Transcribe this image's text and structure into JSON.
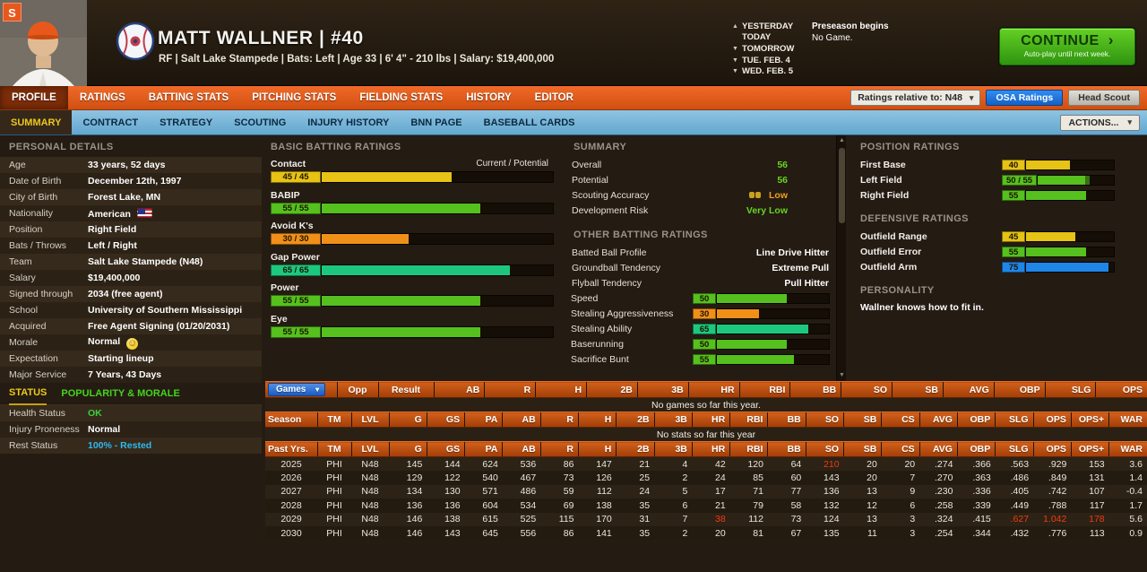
{
  "header": {
    "badge_letter": "S",
    "title": "MATT WALLNER  |  #40",
    "subtitle": "RF | Salt Lake Stampede  |  Bats: Left  |  Age 33  |  6' 4\" - 210 lbs  |  Salary: $19,400,000",
    "dates": [
      "YESTERDAY",
      "TODAY",
      "TOMORROW",
      "TUE. FEB. 4",
      "WED. FEB. 5"
    ],
    "preseason_line1": "Preseason begins",
    "preseason_line2": "No Game.",
    "continue_label": "CONTINUE",
    "continue_sub": "Auto-play until next week."
  },
  "main_nav": {
    "tabs": [
      "PROFILE",
      "RATINGS",
      "BATTING STATS",
      "PITCHING STATS",
      "FIELDING STATS",
      "HISTORY",
      "EDITOR"
    ],
    "active": "PROFILE",
    "ratings_relative_label": "Ratings relative to: N48",
    "osa_button": "OSA Ratings",
    "head_scout_button": "Head Scout"
  },
  "sub_nav": {
    "tabs": [
      "SUMMARY",
      "CONTRACT",
      "STRATEGY",
      "SCOUTING",
      "INJURY HISTORY",
      "BNN PAGE",
      "BASEBALL CARDS"
    ],
    "active": "SUMMARY",
    "actions_label": "ACTIONS..."
  },
  "personal_details": {
    "title": "PERSONAL DETAILS",
    "rows": [
      {
        "label": "Age",
        "value": "33 years, 52 days"
      },
      {
        "label": "Date of Birth",
        "value": "December 12th, 1997"
      },
      {
        "label": "City of Birth",
        "value": "Forest Lake, MN"
      },
      {
        "label": "Nationality",
        "value": "American",
        "icon": "us-flag"
      },
      {
        "label": "Position",
        "value": "Right Field"
      },
      {
        "label": "Bats / Throws",
        "value": "Left / Right"
      },
      {
        "label": "Team",
        "value": "Salt Lake Stampede (N48)"
      },
      {
        "label": "Salary",
        "value": "$19,400,000"
      },
      {
        "label": "Signed through",
        "value": "2034 (free agent)"
      },
      {
        "label": "School",
        "value": "University of Southern Mississippi"
      },
      {
        "label": "Acquired",
        "value": "Free Agent Signing (01/20/2031)"
      },
      {
        "label": "Morale",
        "value": "Normal",
        "icon": "morale-face"
      },
      {
        "label": "Expectation",
        "value": "Starting lineup"
      },
      {
        "label": "Major Service",
        "value": "7 Years, 43 Days"
      }
    ]
  },
  "status_panel": {
    "tabs": [
      "STATUS",
      "POPULARITY & MORALE"
    ],
    "active": "STATUS",
    "rows": [
      {
        "label": "Health Status",
        "value": "OK",
        "color": "#3bd33b"
      },
      {
        "label": "Injury Proneness",
        "value": "Normal",
        "color": "#ffffff"
      },
      {
        "label": "Rest Status",
        "value": "100% - Rested",
        "color": "#2fb9ef"
      }
    ]
  },
  "batting_ratings": {
    "title": "BASIC BATTING RATINGS",
    "scale_note": "Current / Potential",
    "bars": [
      {
        "label": "Contact",
        "display": "45 / 45",
        "value": 45,
        "color": "#e6c314"
      },
      {
        "label": "BABIP",
        "display": "55 / 55",
        "value": 55,
        "color": "#55c01e"
      },
      {
        "label": "Avoid K's",
        "display": "30 / 30",
        "value": 30,
        "color": "#f09018"
      },
      {
        "label": "Gap Power",
        "display": "65 / 65",
        "value": 65,
        "color": "#1dc87e"
      },
      {
        "label": "Power",
        "display": "55 / 55",
        "value": 55,
        "color": "#55c01e"
      },
      {
        "label": "Eye",
        "display": "55 / 55",
        "value": 55,
        "color": "#55c01e"
      }
    ]
  },
  "summary_panel": {
    "title": "SUMMARY",
    "rows": [
      {
        "label": "Overall",
        "value": "56",
        "color": "#67d41f"
      },
      {
        "label": "Potential",
        "value": "56",
        "color": "#67d41f"
      },
      {
        "label": "Scouting Accuracy",
        "value": "Low",
        "color": "#f0a01e",
        "icon": "binoculars"
      },
      {
        "label": "Development Risk",
        "value": "Very Low",
        "color": "#67d41f"
      }
    ],
    "other_title": "OTHER BATTING RATINGS",
    "text_rows": [
      {
        "label": "Batted Ball Profile",
        "value": "Line Drive Hitter"
      },
      {
        "label": "Groundball Tendency",
        "value": "Extreme Pull"
      },
      {
        "label": "Flyball Tendency",
        "value": "Pull Hitter"
      }
    ],
    "bars": [
      {
        "label": "Speed",
        "display": "50",
        "value": 50,
        "color": "#55c01e"
      },
      {
        "label": "Stealing Aggressiveness",
        "display": "30",
        "value": 30,
        "color": "#f09018"
      },
      {
        "label": "Stealing Ability",
        "display": "65",
        "value": 65,
        "color": "#1dc87e"
      },
      {
        "label": "Baserunning",
        "display": "50",
        "value": 50,
        "color": "#55c01e"
      },
      {
        "label": "Sacrifice Bunt",
        "display": "55",
        "value": 55,
        "color": "#55c01e"
      }
    ]
  },
  "position_panel": {
    "title": "POSITION RATINGS",
    "bars": [
      {
        "label": "First Base",
        "display": "40",
        "value": 40,
        "color": "#e6c314"
      },
      {
        "label": "Left Field",
        "display": "50 / 55",
        "value": 50,
        "potential": 55,
        "color": "#55c01e"
      },
      {
        "label": "Right Field",
        "display": "55",
        "value": 55,
        "color": "#55c01e"
      }
    ],
    "defense_title": "DEFENSIVE RATINGS",
    "defense_bars": [
      {
        "label": "Outfield Range",
        "display": "45",
        "value": 45,
        "color": "#e6c314"
      },
      {
        "label": "Outfield Error",
        "display": "55",
        "value": 55,
        "color": "#55c01e"
      },
      {
        "label": "Outfield Arm",
        "display": "75",
        "value": 75,
        "color": "#1f86e8"
      }
    ],
    "personality_title": "PERSONALITY",
    "personality_text": "Wallner knows how to fit in."
  },
  "stats": {
    "games": {
      "columns": [
        "Games",
        "Opp",
        "Result",
        "AB",
        "R",
        "H",
        "2B",
        "3B",
        "HR",
        "RBI",
        "BB",
        "SO",
        "SB",
        "AVG",
        "OBP",
        "SLG",
        "OPS"
      ],
      "empty": "No games so far this year."
    },
    "season": {
      "columns": [
        "Season",
        "TM",
        "LVL",
        "G",
        "GS",
        "PA",
        "AB",
        "R",
        "H",
        "2B",
        "3B",
        "HR",
        "RBI",
        "BB",
        "SO",
        "SB",
        "CS",
        "AVG",
        "OBP",
        "SLG",
        "OPS",
        "OPS+",
        "WAR"
      ],
      "empty": "No stats so far this year"
    },
    "past_years": {
      "columns": [
        "Past Yrs.",
        "TM",
        "LVL",
        "G",
        "GS",
        "PA",
        "AB",
        "R",
        "H",
        "2B",
        "3B",
        "HR",
        "RBI",
        "BB",
        "SO",
        "SB",
        "CS",
        "AVG",
        "OBP",
        "SLG",
        "OPS",
        "OPS+",
        "WAR"
      ],
      "rows": [
        [
          "2025",
          "PHI",
          "N48",
          "145",
          "144",
          "624",
          "536",
          "86",
          "147",
          "21",
          "4",
          "42",
          "120",
          "64",
          "210",
          "20",
          "20",
          ".274",
          ".366",
          ".563",
          ".929",
          "153",
          "3.6"
        ],
        [
          "2026",
          "PHI",
          "N48",
          "129",
          "122",
          "540",
          "467",
          "73",
          "126",
          "25",
          "2",
          "24",
          "85",
          "60",
          "143",
          "20",
          "7",
          ".270",
          ".363",
          ".486",
          ".849",
          "131",
          "1.4"
        ],
        [
          "2027",
          "PHI",
          "N48",
          "134",
          "130",
          "571",
          "486",
          "59",
          "112",
          "24",
          "5",
          "17",
          "71",
          "77",
          "136",
          "13",
          "9",
          ".230",
          ".336",
          ".405",
          ".742",
          "107",
          "-0.4"
        ],
        [
          "2028",
          "PHI",
          "N48",
          "136",
          "136",
          "604",
          "534",
          "69",
          "138",
          "35",
          "6",
          "21",
          "79",
          "58",
          "132",
          "12",
          "6",
          ".258",
          ".339",
          ".449",
          ".788",
          "117",
          "1.7"
        ],
        [
          "2029",
          "PHI",
          "N48",
          "146",
          "138",
          "615",
          "525",
          "115",
          "170",
          "31",
          "7",
          "38",
          "112",
          "73",
          "124",
          "13",
          "3",
          ".324",
          ".415",
          ".627",
          "1.042",
          "178",
          "5.6"
        ],
        [
          "2030",
          "PHI",
          "N48",
          "146",
          "143",
          "645",
          "556",
          "86",
          "141",
          "35",
          "2",
          "20",
          "81",
          "67",
          "135",
          "11",
          "3",
          ".254",
          ".344",
          ".432",
          ".776",
          "113",
          "0.9"
        ]
      ],
      "red_cells": [
        [
          0,
          14
        ],
        [
          4,
          11
        ],
        [
          4,
          19
        ],
        [
          4,
          20
        ],
        [
          4,
          21
        ]
      ],
      "highlight_color": "#f23b10"
    }
  }
}
